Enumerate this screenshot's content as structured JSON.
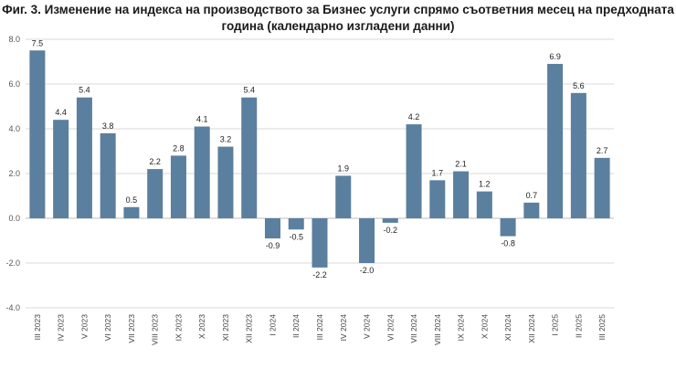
{
  "chart_data": {
    "type": "bar",
    "title_line1": "Фиг. 3. Изменение на индекса на производството за Бизнес услуги спрямо съответния месец на предходната",
    "title_line2": "година (календарно изгладени данни)",
    "categories": [
      "III 2023",
      "IV 2023",
      "V 2023",
      "VI 2023",
      "VII 2023",
      "VIII 2023",
      "IX 2023",
      "X 2023",
      "XI 2023",
      "XII 2023",
      "I 2024",
      "II 2024",
      "III 2024",
      "IV 2024",
      "V 2024",
      "VI 2024",
      "VII 2024",
      "VIII 2024",
      "IX 2024",
      "X 2024",
      "XI 2024",
      "XII 2024",
      "I 2025",
      "II 2025",
      "III 2025"
    ],
    "values": [
      7.5,
      4.4,
      5.4,
      3.8,
      0.5,
      2.2,
      2.8,
      4.1,
      3.2,
      5.4,
      -0.9,
      -0.5,
      -2.2,
      1.9,
      -2.0,
      -0.2,
      4.2,
      1.7,
      2.1,
      1.2,
      -0.8,
      0.7,
      6.9,
      5.6,
      2.7
    ],
    "value_labels": [
      "7.5",
      "4.4",
      "5.4",
      "3.8",
      "0.5",
      "2.2",
      "2.8",
      "4.1",
      "3.2",
      "5.4",
      "-0.9",
      "-0.5",
      "-2.2",
      "1.9",
      "-2.0",
      "-0.2",
      "4.2",
      "1.7",
      "2.1",
      "1.2",
      "-0.8",
      "0.7",
      "6.9",
      "5.6",
      "2.7"
    ],
    "yticks": [
      "-4.0",
      "-2.0",
      "0.0",
      "2.0",
      "4.0",
      "6.0",
      "8.0"
    ],
    "ylim": [
      -4,
      8
    ],
    "bar_color": "#5b7f9e",
    "grid_color": "#d9d9d9",
    "xlabel": "",
    "ylabel": ""
  }
}
